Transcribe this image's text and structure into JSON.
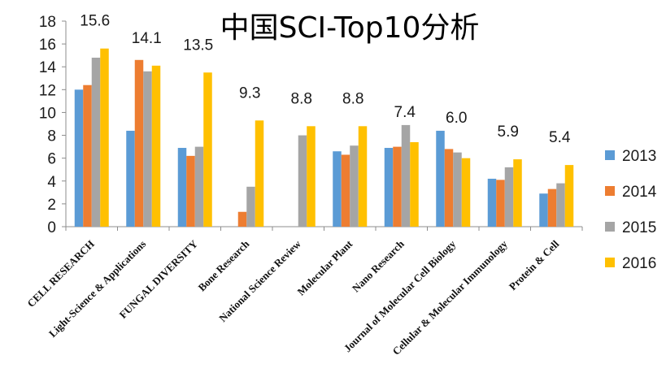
{
  "chart_data": {
    "type": "bar",
    "title": "中国SCI-Top10分析",
    "categories": [
      "CELL RESEARCH",
      "Light-Science & Applications",
      "FUNGAL DIVERSITY",
      "Bone Research",
      "National Science Review",
      "Molecular Plant",
      "Nano Research",
      "Journal of Molecular Cell Biology",
      "Cellular & Molecular Immunology",
      "Protein & Cell"
    ],
    "series": [
      {
        "name": "2013",
        "color": "#5B9BD5",
        "values": [
          12.0,
          8.4,
          6.9,
          null,
          null,
          6.6,
          6.9,
          8.4,
          4.2,
          2.9
        ]
      },
      {
        "name": "2014",
        "color": "#ED7D31",
        "values": [
          12.4,
          14.6,
          6.2,
          1.3,
          null,
          6.3,
          7.0,
          6.8,
          4.1,
          3.3
        ]
      },
      {
        "name": "2015",
        "color": "#A5A5A5",
        "values": [
          14.8,
          13.6,
          7.0,
          3.5,
          8.0,
          7.1,
          8.9,
          6.5,
          5.2,
          3.8
        ]
      },
      {
        "name": "2016",
        "color": "#FFC000",
        "values": [
          15.6,
          14.1,
          13.5,
          9.3,
          8.8,
          8.8,
          7.4,
          6.0,
          5.9,
          5.4
        ]
      }
    ],
    "data_labels": [
      "15.6",
      "14.1",
      "13.5",
      "9.3",
      "8.8",
      "8.8",
      "7.4",
      "6.0",
      "5.9",
      "5.4"
    ],
    "yticks": [
      0,
      2,
      4,
      6,
      8,
      10,
      12,
      14,
      16,
      18
    ],
    "ylim": [
      0,
      18
    ],
    "xlabel": "",
    "ylabel": "",
    "grid": false,
    "legend_position": "right"
  }
}
